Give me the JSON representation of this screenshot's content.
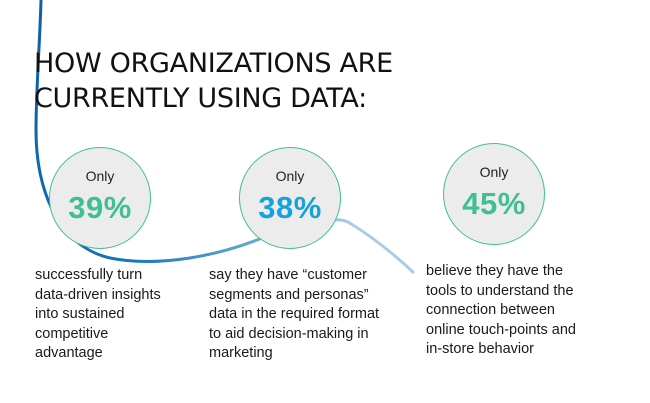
{
  "title": {
    "line1": "HOW ORGANIZATIONS ARE",
    "line2": "CURRENTLY USING DATA:"
  },
  "stats": [
    {
      "prefix": "Only",
      "value": "39%",
      "color": "#3fbf92",
      "description": [
        "successfully turn",
        "data-driven insights",
        "into sustained",
        "competitive",
        "advantage"
      ]
    },
    {
      "prefix": "Only",
      "value": "38%",
      "color": "#16a3dc",
      "description": [
        "say they have “customer",
        "segments and personas”",
        "data in the required format",
        "to aid decision-making in",
        "marketing"
      ]
    },
    {
      "prefix": "Only",
      "value": "45%",
      "color": "#3fbf92",
      "description": [
        "believe they have the",
        "tools to understand the",
        "connection between",
        "online touch-points and",
        "in-store behavior"
      ]
    }
  ]
}
